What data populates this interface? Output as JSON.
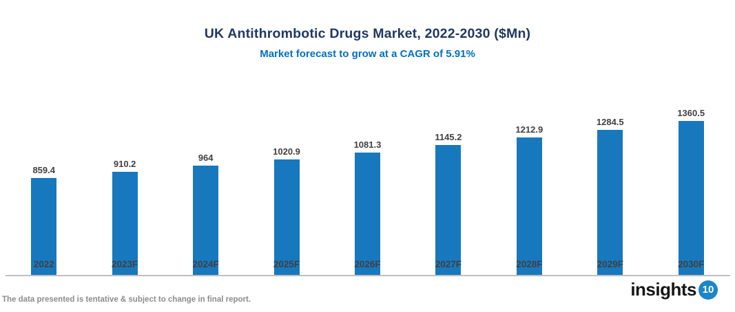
{
  "chart_data": {
    "type": "bar",
    "title": "UK Antithrombotic Drugs Market, 2022-2030 ($Mn)",
    "subtitle": "Market forecast to grow at a CAGR of 5.91%",
    "categories": [
      "2022",
      "2023F",
      "2024F",
      "2025F",
      "2026F",
      "2027F",
      "2028F",
      "2029F",
      "2030F"
    ],
    "values": [
      859.4,
      910.2,
      964,
      1020.9,
      1081.3,
      1145.2,
      1212.9,
      1284.5,
      1360.5
    ],
    "value_labels": [
      "859.4",
      "910.2",
      "964",
      "1020.9",
      "1081.3",
      "1145.2",
      "1212.9",
      "1284.5",
      "1360.5"
    ],
    "xlabel": "",
    "ylabel": "",
    "ylim": [
      0,
      1400
    ],
    "grid": false,
    "legend": "none",
    "orientation": "vertical"
  },
  "colors": {
    "title": "#1F3864",
    "subtitle": "#0070C0",
    "bar_fill": "#1878BE",
    "value_label": "#404040",
    "category_label": "#404040",
    "axis_line": "#BFBFBF",
    "footnote": "#8C8C8C",
    "logo_circle": "#1B86C9"
  },
  "footer": {
    "note": "The data presented is tentative & subject to change in final report.",
    "logo_text": "insights",
    "logo_number": "10"
  }
}
